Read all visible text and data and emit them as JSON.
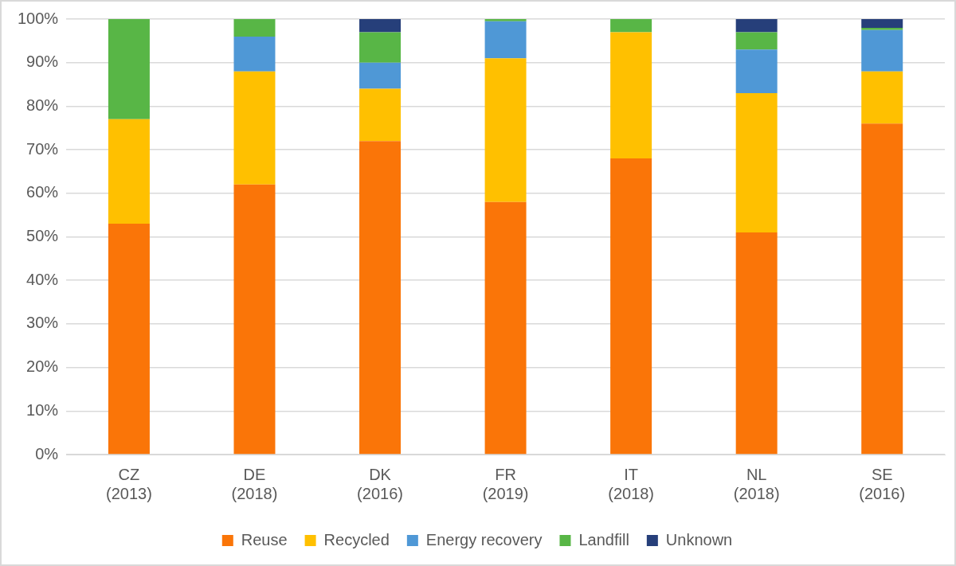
{
  "chart_data": {
    "type": "bar",
    "stacked": true,
    "categories": [
      "CZ\n(2013)",
      "DE\n(2018)",
      "DK\n(2016)",
      "FR\n(2019)",
      "IT\n(2018)",
      "NL\n(2018)",
      "SE\n(2016)"
    ],
    "series": [
      {
        "name": "Reuse",
        "color": "#fa7508",
        "values": [
          53,
          62,
          72,
          58,
          68,
          51,
          76
        ]
      },
      {
        "name": "Recycled",
        "color": "#ffc000",
        "values": [
          24,
          26,
          12,
          33,
          29,
          32,
          12
        ]
      },
      {
        "name": "Energy recovery",
        "color": "#4f98d6",
        "values": [
          0,
          8,
          6,
          8.5,
          0,
          10,
          9.5
        ]
      },
      {
        "name": "Landfill",
        "color": "#58b646",
        "values": [
          23,
          4,
          7,
          0.5,
          3,
          4,
          0.5
        ]
      },
      {
        "name": "Unknown",
        "color": "#263f7a",
        "values": [
          0,
          0,
          3,
          0,
          0,
          3,
          2
        ]
      }
    ],
    "ylim": [
      0,
      100
    ],
    "yticks": [
      {
        "value": 0,
        "label": "0%"
      },
      {
        "value": 10,
        "label": "10%"
      },
      {
        "value": 20,
        "label": "20%"
      },
      {
        "value": 30,
        "label": "30%"
      },
      {
        "value": 40,
        "label": "40%"
      },
      {
        "value": 50,
        "label": "50%"
      },
      {
        "value": 60,
        "label": "60%"
      },
      {
        "value": 70,
        "label": "70%"
      },
      {
        "value": 80,
        "label": "80%"
      },
      {
        "value": 90,
        "label": "90%"
      },
      {
        "value": 100,
        "label": "100%"
      }
    ],
    "grid": "y",
    "legend": "bottom"
  }
}
